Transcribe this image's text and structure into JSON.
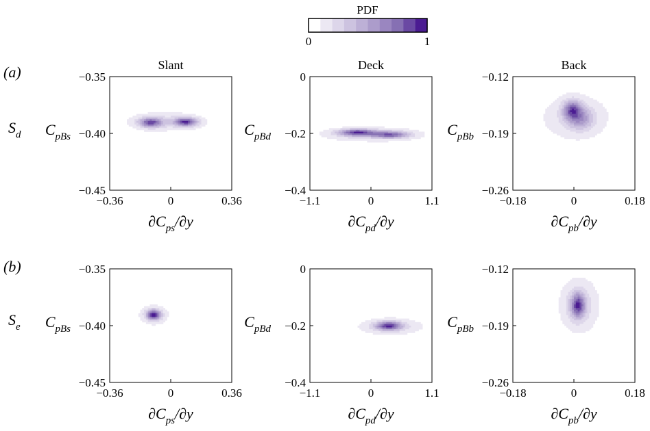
{
  "colorbar": {
    "title": "PDF",
    "min_label": "0",
    "max_label": "1",
    "colors": [
      "#ffffff",
      "#ece8f3",
      "#ddd6ea",
      "#cdc3e0",
      "#bdb0d6",
      "#ac9ccb",
      "#9a86c0",
      "#8670b3",
      "#6a49a3",
      "#4b1c92"
    ]
  },
  "rows": [
    {
      "label_main": "S",
      "label_sub": "d",
      "panel_tag": "(a)"
    },
    {
      "label_main": "S",
      "label_sub": "e",
      "panel_tag": "(b)"
    }
  ],
  "columns": [
    {
      "title": "Slant",
      "xlabel": {
        "prefix": "∂C",
        "sub": "ps",
        "suffix": "/∂y"
      },
      "ylabel": {
        "main": "C",
        "sub": "pBs"
      },
      "xticks": [
        "−0.36",
        "0",
        "0.36"
      ],
      "yticks": [
        "−0.35",
        "−0.40",
        "−0.45"
      ]
    },
    {
      "title": "Deck",
      "xlabel": {
        "prefix": "∂C",
        "sub": "pd",
        "suffix": "/∂y"
      },
      "ylabel": {
        "main": "C",
        "sub": "pBd"
      },
      "xticks": [
        "−1.1",
        "0",
        "1.1"
      ],
      "yticks": [
        "0",
        "−0.2",
        "−0.4"
      ]
    },
    {
      "title": "Back",
      "xlabel": {
        "prefix": "∂C",
        "sub": "pb",
        "suffix": "/∂y"
      },
      "ylabel": {
        "main": "C",
        "sub": "pBb"
      },
      "xticks": [
        "−0.18",
        "0",
        "0.18"
      ],
      "yticks": [
        "−0.12",
        "−0.19",
        "−0.26"
      ]
    }
  ],
  "chart_data": [
    {
      "type": "heatmap",
      "panel": "(a) Slant",
      "row": "S_d",
      "xlim": [
        -0.36,
        0.36
      ],
      "ylim": [
        -0.45,
        -0.35
      ],
      "blobs": [
        {
          "x": -0.12,
          "y": -0.3905,
          "sx": 0.045,
          "sy": 0.0028,
          "w": 0.9
        },
        {
          "x": 0.09,
          "y": -0.39,
          "sx": 0.045,
          "sy": 0.0025,
          "w": 1.0
        },
        {
          "x": -0.03,
          "y": -0.3895,
          "sx": 0.14,
          "sy": 0.005,
          "w": 0.25
        }
      ]
    },
    {
      "type": "heatmap",
      "panel": "(a) Deck",
      "row": "S_d",
      "xlim": [
        -1.1,
        1.1
      ],
      "ylim": [
        -0.4,
        0
      ],
      "blobs": [
        {
          "x": -0.25,
          "y": -0.197,
          "sx": 0.22,
          "sy": 0.008,
          "w": 1.0
        },
        {
          "x": 0.35,
          "y": -0.205,
          "sx": 0.22,
          "sy": 0.008,
          "w": 0.85
        },
        {
          "x": 0.0,
          "y": -0.203,
          "sx": 0.55,
          "sy": 0.015,
          "w": 0.3
        }
      ]
    },
    {
      "type": "heatmap",
      "panel": "(a) Back",
      "row": "S_d",
      "xlim": [
        -0.18,
        0.18
      ],
      "ylim": [
        -0.26,
        -0.12
      ],
      "blobs": [
        {
          "x": -0.005,
          "y": -0.161,
          "sx": 0.018,
          "sy": 0.008,
          "w": 1.0
        },
        {
          "x": 0.02,
          "y": -0.172,
          "sx": 0.025,
          "sy": 0.009,
          "w": 0.6
        },
        {
          "x": 0.005,
          "y": -0.17,
          "sx": 0.06,
          "sy": 0.017,
          "w": 0.3
        }
      ]
    },
    {
      "type": "heatmap",
      "panel": "(b) Slant",
      "row": "S_e",
      "xlim": [
        -0.36,
        0.36
      ],
      "ylim": [
        -0.45,
        -0.35
      ],
      "blobs": [
        {
          "x": -0.1,
          "y": -0.3905,
          "sx": 0.028,
          "sy": 0.003,
          "w": 1.0
        },
        {
          "x": -0.1,
          "y": -0.3905,
          "sx": 0.05,
          "sy": 0.005,
          "w": 0.3
        }
      ]
    },
    {
      "type": "heatmap",
      "panel": "(b) Deck",
      "row": "S_e",
      "xlim": [
        -1.1,
        1.1
      ],
      "ylim": [
        -0.4,
        0
      ],
      "blobs": [
        {
          "x": 0.32,
          "y": -0.201,
          "sx": 0.15,
          "sy": 0.01,
          "w": 1.0
        },
        {
          "x": 0.35,
          "y": -0.203,
          "sx": 0.35,
          "sy": 0.018,
          "w": 0.3
        }
      ]
    },
    {
      "type": "heatmap",
      "panel": "(b) Back",
      "row": "S_e",
      "xlim": [
        -0.18,
        0.18
      ],
      "ylim": [
        -0.26,
        -0.12
      ],
      "blobs": [
        {
          "x": 0.012,
          "y": -0.165,
          "sx": 0.014,
          "sy": 0.01,
          "w": 1.0
        },
        {
          "x": 0.015,
          "y": -0.165,
          "sx": 0.035,
          "sy": 0.02,
          "w": 0.35
        }
      ]
    }
  ]
}
